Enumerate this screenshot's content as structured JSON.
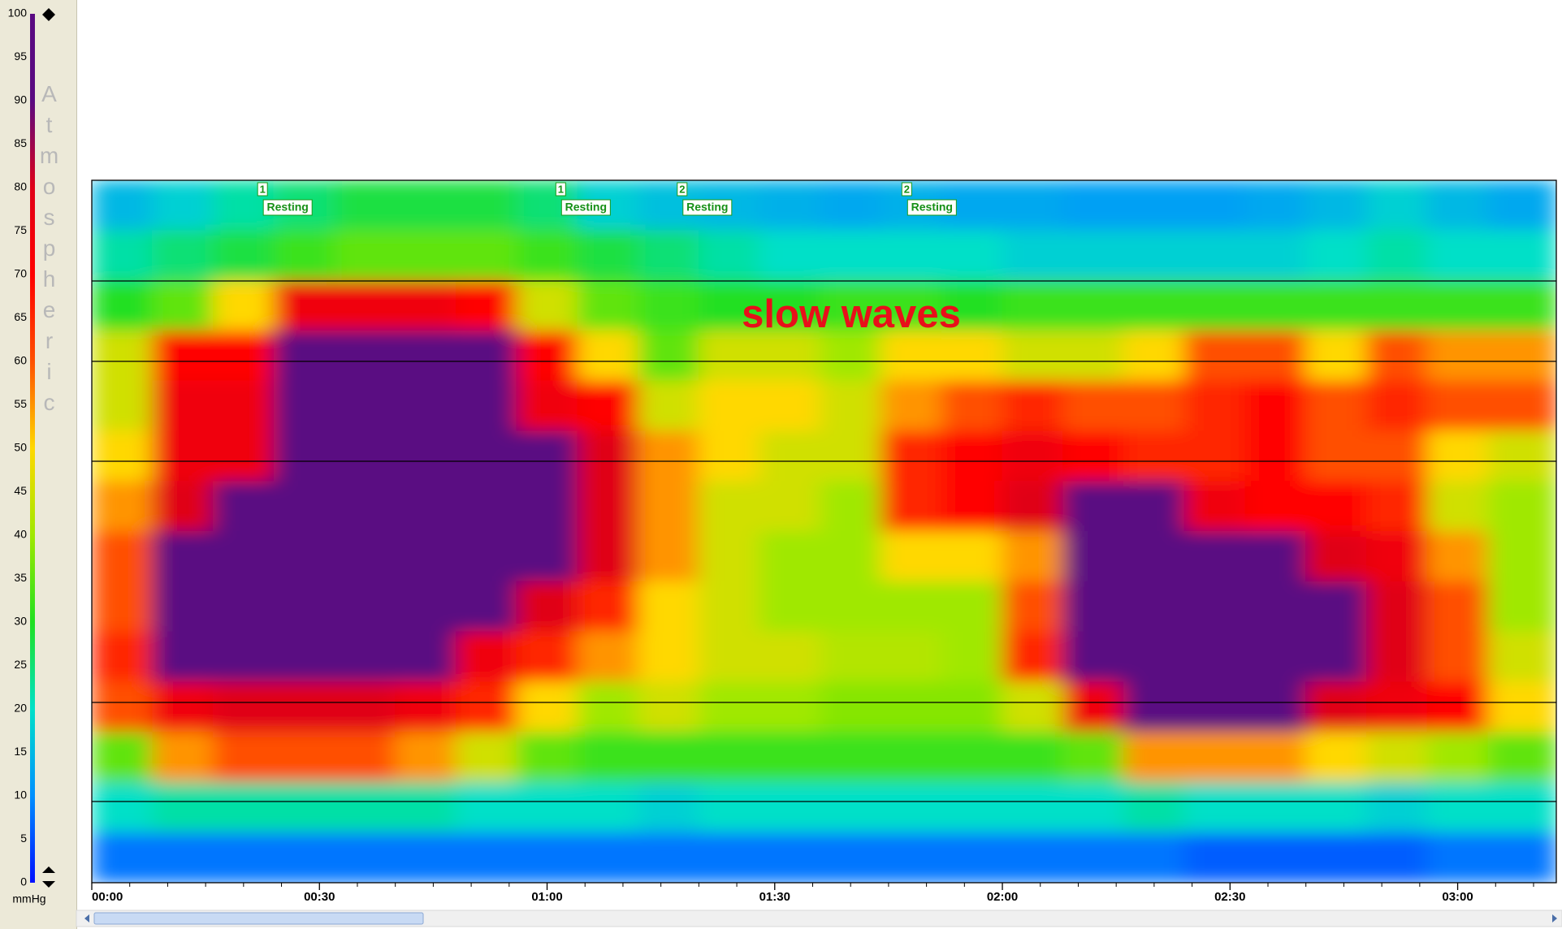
{
  "chart_data": {
    "type": "heatmap",
    "annotation": "slow waves",
    "colorbar_title": "Atmospheric",
    "colorbar_label": "mmHg",
    "clim": [
      0,
      100
    ],
    "cticks": [
      0,
      5,
      10,
      15,
      20,
      25,
      30,
      35,
      40,
      45,
      50,
      55,
      60,
      65,
      70,
      75,
      80,
      85,
      90,
      95,
      100
    ],
    "colors": [
      "#0010ff",
      "#0090ff",
      "#00e0c8",
      "#20e020",
      "#a0e800",
      "#ffd800",
      "#ff5000",
      "#ff0000",
      "#e00018",
      "#5a0a82",
      "#5a0a82"
    ],
    "xlim": [
      0,
      193
    ],
    "xticks": [
      {
        "value": 0,
        "label": "00:00"
      },
      {
        "value": 30,
        "label": "00:30"
      },
      {
        "value": 60,
        "label": "01:00"
      },
      {
        "value": 90,
        "label": "01:30"
      },
      {
        "value": 120,
        "label": "02:00"
      },
      {
        "value": 150,
        "label": "02:30"
      },
      {
        "value": 180,
        "label": "03:00"
      }
    ],
    "xminorticks": [
      5,
      10,
      15,
      20,
      25,
      35,
      40,
      45,
      50,
      55,
      65,
      70,
      75,
      80,
      85,
      95,
      100,
      105,
      110,
      115,
      125,
      130,
      135,
      140,
      145,
      155,
      160,
      165,
      170,
      175,
      185,
      190
    ],
    "events": [
      {
        "code": "1",
        "label": "Resting",
        "x": 22.5
      },
      {
        "code": "1",
        "label": "Resting",
        "x": 61.8
      },
      {
        "code": "2",
        "label": "Resting",
        "x": 77.8
      },
      {
        "code": "2",
        "label": "Resting",
        "x": 107.4
      }
    ],
    "x": [
      4,
      12,
      20,
      28,
      36,
      44,
      52,
      60,
      68,
      76,
      84,
      92,
      100,
      108,
      116,
      124,
      132,
      140,
      148,
      156,
      164,
      172,
      180,
      188
    ],
    "values": [
      [
        15,
        18,
        22,
        25,
        28,
        28,
        28,
        25,
        18,
        16,
        15,
        14,
        13,
        14,
        13,
        13,
        12,
        12,
        12,
        13,
        15,
        18,
        15,
        13
      ],
      [
        22,
        25,
        28,
        32,
        35,
        35,
        35,
        32,
        28,
        25,
        22,
        20,
        20,
        20,
        20,
        18,
        18,
        18,
        18,
        18,
        20,
        22,
        20,
        20
      ],
      [
        30,
        35,
        50,
        75,
        75,
        75,
        70,
        45,
        35,
        32,
        30,
        30,
        32,
        32,
        30,
        32,
        32,
        32,
        32,
        32,
        32,
        32,
        32,
        32
      ],
      [
        45,
        70,
        70,
        100,
        100,
        100,
        100,
        70,
        50,
        35,
        45,
        45,
        40,
        50,
        50,
        45,
        45,
        50,
        60,
        60,
        50,
        60,
        55,
        55
      ],
      [
        45,
        75,
        75,
        100,
        100,
        100,
        100,
        75,
        70,
        45,
        50,
        50,
        45,
        55,
        60,
        65,
        60,
        60,
        65,
        70,
        60,
        65,
        60,
        60
      ],
      [
        50,
        75,
        75,
        100,
        100,
        100,
        100,
        100,
        80,
        55,
        50,
        45,
        45,
        65,
        70,
        75,
        70,
        65,
        65,
        70,
        60,
        60,
        50,
        45
      ],
      [
        55,
        80,
        100,
        100,
        100,
        100,
        100,
        100,
        80,
        55,
        45,
        45,
        40,
        65,
        70,
        80,
        100,
        100,
        75,
        70,
        70,
        65,
        45,
        40
      ],
      [
        60,
        100,
        100,
        100,
        100,
        100,
        100,
        100,
        80,
        55,
        45,
        40,
        40,
        50,
        50,
        55,
        100,
        100,
        100,
        100,
        80,
        75,
        55,
        40
      ],
      [
        60,
        100,
        100,
        100,
        100,
        100,
        100,
        80,
        65,
        50,
        45,
        40,
        40,
        40,
        40,
        60,
        100,
        100,
        100,
        100,
        100,
        80,
        60,
        40
      ],
      [
        65,
        100,
        100,
        100,
        100,
        100,
        75,
        65,
        55,
        50,
        45,
        45,
        42,
        42,
        40,
        65,
        100,
        100,
        100,
        100,
        100,
        80,
        60,
        45
      ],
      [
        60,
        75,
        80,
        80,
        80,
        75,
        65,
        50,
        40,
        45,
        40,
        40,
        38,
        38,
        38,
        45,
        75,
        100,
        100,
        100,
        80,
        75,
        70,
        50
      ],
      [
        35,
        55,
        60,
        60,
        60,
        55,
        45,
        35,
        32,
        32,
        32,
        32,
        32,
        32,
        32,
        32,
        35,
        55,
        55,
        55,
        50,
        45,
        40,
        35
      ],
      [
        20,
        22,
        22,
        22,
        22,
        22,
        20,
        20,
        20,
        18,
        20,
        20,
        20,
        20,
        20,
        20,
        20,
        22,
        20,
        20,
        20,
        18,
        20,
        20
      ],
      [
        8,
        8,
        8,
        8,
        8,
        8,
        8,
        8,
        8,
        8,
        8,
        8,
        8,
        8,
        8,
        8,
        8,
        8,
        6,
        6,
        6,
        6,
        8,
        8
      ]
    ]
  }
}
